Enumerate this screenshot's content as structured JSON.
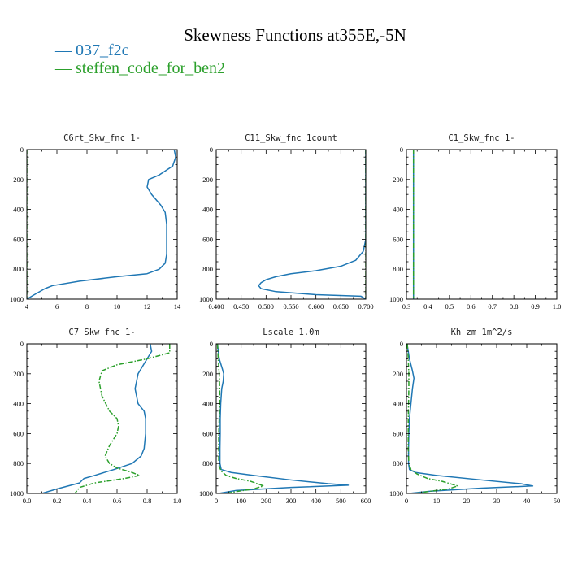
{
  "figure": {
    "title": "Skewness Functions at355E,-5N",
    "legend": [
      {
        "label": "037_f2c",
        "color": "#1f77b4",
        "dash": "solid"
      },
      {
        "label": "steffen_code_for_ben2",
        "color": "#2ca02c",
        "dash": "dashdot"
      }
    ]
  },
  "chart_data": [
    {
      "type": "line",
      "title": "C6rt_Skw_fnc   1-",
      "xlim": [
        4,
        14
      ],
      "xticks": [
        4,
        6,
        8,
        10,
        12,
        14
      ],
      "xtick_labels": [
        "4",
        "6",
        "8",
        "10",
        "12",
        "14"
      ],
      "ylim": [
        1000,
        0
      ],
      "yticks": [
        0,
        200,
        400,
        600,
        800,
        1000
      ],
      "series": [
        {
          "name": "037_f2c",
          "color": "#1f77b4",
          "dash": "solid",
          "x": [
            13.8,
            13.9,
            13.7,
            12.8,
            12.1,
            12.0,
            12.3,
            12.9,
            13.2,
            13.3,
            13.3,
            13.3,
            13.2,
            12.8,
            12.0,
            10.0,
            7.5,
            5.7,
            5.2,
            4.5,
            4.0
          ],
          "y": [
            0,
            50,
            110,
            170,
            200,
            250,
            300,
            370,
            420,
            500,
            600,
            700,
            760,
            800,
            830,
            850,
            880,
            910,
            930,
            970,
            1000
          ]
        },
        {
          "name": "steffen_code_for_ben2",
          "color": "#2ca02c",
          "dash": "dashdot",
          "x": [
            4.0,
            4.0
          ],
          "y": [
            0,
            1000
          ]
        }
      ]
    },
    {
      "type": "line",
      "title": "C11_Skw_fnc   1count",
      "xlim": [
        0.4,
        0.7
      ],
      "xticks": [
        0.4,
        0.45,
        0.5,
        0.55,
        0.6,
        0.65,
        0.7
      ],
      "xtick_labels": [
        "0.400",
        "0.450",
        "0.500",
        "0.550",
        "0.600",
        "0.650",
        "0.700"
      ],
      "ylim": [
        1000,
        0
      ],
      "yticks": [
        0,
        200,
        400,
        600,
        800,
        1000
      ],
      "series": [
        {
          "name": "037_f2c",
          "color": "#1f77b4",
          "dash": "solid",
          "x": [
            0.7,
            0.7,
            0.7,
            0.7,
            0.695,
            0.68,
            0.65,
            0.6,
            0.55,
            0.52,
            0.5,
            0.49,
            0.485,
            0.49,
            0.52,
            0.6,
            0.69,
            0.7
          ],
          "y": [
            0,
            200,
            400,
            600,
            680,
            740,
            780,
            810,
            830,
            850,
            870,
            890,
            910,
            930,
            950,
            970,
            980,
            1000
          ]
        },
        {
          "name": "steffen_code_for_ben2",
          "color": "#2ca02c",
          "dash": "dashdot",
          "x": [
            0.7,
            0.7
          ],
          "y": [
            0,
            1000
          ]
        }
      ]
    },
    {
      "type": "line",
      "title": "C1_Skw_fnc   1-",
      "xlim": [
        0.3,
        1.0
      ],
      "xticks": [
        0.3,
        0.4,
        0.5,
        0.6,
        0.7,
        0.8,
        0.9,
        1.0
      ],
      "xtick_labels": [
        "0.3",
        "0.4",
        "0.5",
        "0.6",
        "0.7",
        "0.8",
        "0.9",
        "1.0"
      ],
      "ylim": [
        1000,
        0
      ],
      "yticks": [
        0,
        200,
        400,
        600,
        800,
        1000
      ],
      "series": [
        {
          "name": "037_f2c",
          "color": "#1f77b4",
          "dash": "solid",
          "x": [
            0.333,
            0.333
          ],
          "y": [
            0,
            1000
          ]
        },
        {
          "name": "steffen_code_for_ben2",
          "color": "#2ca02c",
          "dash": "dashdot",
          "x": [
            0.333,
            0.333
          ],
          "y": [
            0,
            1000
          ]
        }
      ]
    },
    {
      "type": "line",
      "title": "C7_Skw_fnc   1-",
      "xlim": [
        0.0,
        1.0
      ],
      "xticks": [
        0.0,
        0.2,
        0.4,
        0.6,
        0.8,
        1.0
      ],
      "xtick_labels": [
        "0.0",
        "0.2",
        "0.4",
        "0.6",
        "0.8",
        "1.0"
      ],
      "ylim": [
        1000,
        0
      ],
      "yticks": [
        0,
        200,
        400,
        600,
        800,
        1000
      ],
      "series": [
        {
          "name": "037_f2c",
          "color": "#1f77b4",
          "dash": "solid",
          "x": [
            0.82,
            0.83,
            0.8,
            0.74,
            0.72,
            0.74,
            0.78,
            0.79,
            0.79,
            0.78,
            0.76,
            0.7,
            0.58,
            0.45,
            0.38,
            0.35,
            0.2,
            0.1
          ],
          "y": [
            0,
            50,
            100,
            200,
            300,
            400,
            450,
            500,
            600,
            700,
            750,
            800,
            840,
            880,
            900,
            930,
            970,
            1000
          ]
        },
        {
          "name": "steffen_code_for_ben2",
          "color": "#2ca02c",
          "dash": "dashdot",
          "x": [
            0.95,
            0.95,
            0.8,
            0.6,
            0.5,
            0.48,
            0.5,
            0.55,
            0.6,
            0.61,
            0.6,
            0.55,
            0.52,
            0.55,
            0.6,
            0.7,
            0.75,
            0.65,
            0.45,
            0.35,
            0.32
          ],
          "y": [
            0,
            60,
            100,
            140,
            180,
            250,
            350,
            450,
            500,
            550,
            600,
            680,
            750,
            800,
            830,
            860,
            880,
            900,
            930,
            960,
            1000
          ]
        }
      ]
    },
    {
      "type": "line",
      "title": "Lscale   1.0m",
      "xlim": [
        0,
        600
      ],
      "xticks": [
        0,
        100,
        200,
        300,
        400,
        500,
        600
      ],
      "xtick_labels": [
        "0",
        "100",
        "200",
        "300",
        "400",
        "500",
        "600"
      ],
      "ylim": [
        1000,
        0
      ],
      "yticks": [
        0,
        200,
        400,
        600,
        800,
        1000
      ],
      "series": [
        {
          "name": "037_f2c",
          "color": "#1f77b4",
          "dash": "solid",
          "x": [
            5,
            12,
            25,
            30,
            28,
            22,
            18,
            16,
            16,
            15,
            15,
            20,
            60,
            150,
            300,
            450,
            530,
            300,
            80,
            10
          ],
          "y": [
            0,
            100,
            170,
            200,
            250,
            300,
            400,
            500,
            600,
            700,
            800,
            840,
            860,
            880,
            910,
            935,
            945,
            960,
            980,
            1000
          ]
        },
        {
          "name": "steffen_code_for_ben2",
          "color": "#2ca02c",
          "dash": "dashdot",
          "x": [
            5,
            8,
            12,
            14,
            14,
            12,
            10,
            10,
            10,
            12,
            20,
            40,
            80,
            140,
            190,
            150,
            90,
            40
          ],
          "y": [
            0,
            100,
            200,
            300,
            400,
            500,
            600,
            700,
            780,
            820,
            850,
            880,
            900,
            920,
            950,
            970,
            985,
            1000
          ]
        }
      ]
    },
    {
      "type": "line",
      "title": "Kh_zm   1m^2/s",
      "xlim": [
        0,
        50
      ],
      "xticks": [
        0,
        10,
        20,
        30,
        40,
        50
      ],
      "xtick_labels": [
        "0",
        "10",
        "20",
        "30",
        "40",
        "50"
      ],
      "ylim": [
        1000,
        0
      ],
      "yticks": [
        0,
        200,
        400,
        600,
        800,
        1000
      ],
      "series": [
        {
          "name": "037_f2c",
          "color": "#1f77b4",
          "dash": "solid",
          "x": [
            0.2,
            1.0,
            2.0,
            2.5,
            2.0,
            1.5,
            1.0,
            0.8,
            0.7,
            0.7,
            1.0,
            3.0,
            10.0,
            25.0,
            38.0,
            42.0,
            25.0,
            8.0,
            1.0
          ],
          "y": [
            0,
            100,
            180,
            230,
            300,
            400,
            500,
            600,
            700,
            800,
            840,
            860,
            880,
            910,
            935,
            950,
            965,
            985,
            1000
          ]
        },
        {
          "name": "steffen_code_for_ben2",
          "color": "#2ca02c",
          "dash": "dashdot",
          "x": [
            0.3,
            0.6,
            0.8,
            0.8,
            0.7,
            0.6,
            0.6,
            0.6,
            0.8,
            1.5,
            3.5,
            7.0,
            12.0,
            17.0,
            14.0,
            8.0,
            3.0
          ],
          "y": [
            0,
            100,
            200,
            300,
            400,
            500,
            600,
            700,
            800,
            840,
            870,
            900,
            920,
            950,
            970,
            985,
            1000
          ]
        }
      ]
    }
  ]
}
